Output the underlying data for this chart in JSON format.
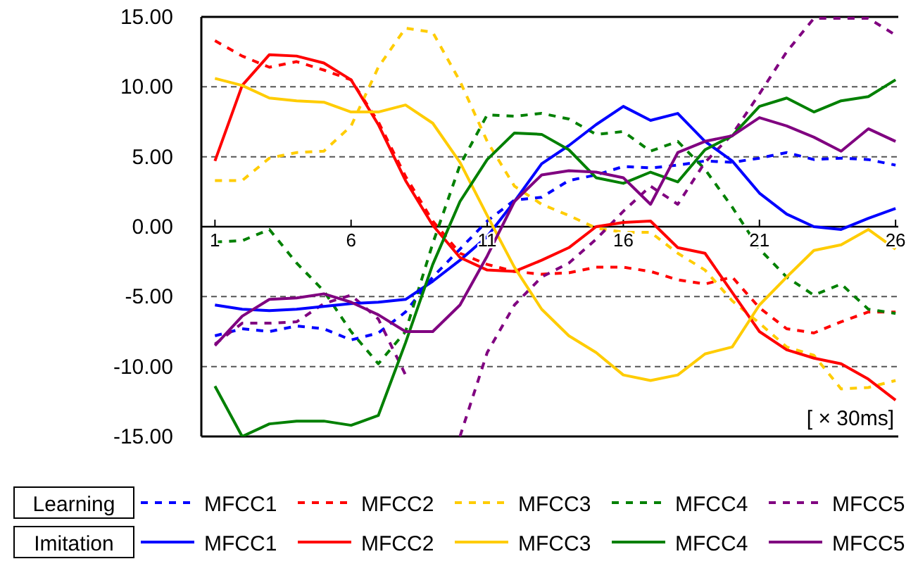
{
  "chart_data": {
    "type": "line",
    "xlabel": "[ × 30ms]",
    "annotations": [
      "Learning",
      "Imitation"
    ],
    "x": [
      1,
      2,
      3,
      4,
      5,
      6,
      7,
      8,
      9,
      10,
      11,
      12,
      13,
      14,
      15,
      16,
      17,
      18,
      19,
      20,
      21,
      22,
      23,
      24,
      25,
      26
    ],
    "xlim": [
      0.5,
      26.1
    ],
    "xticks": [
      1,
      6,
      11,
      16,
      21,
      26
    ],
    "ylim": [
      -15,
      15
    ],
    "yticks": [
      {
        "value": 15,
        "label": "15.00"
      },
      {
        "value": 10,
        "label": "10.00"
      },
      {
        "value": 5,
        "label": "5.00"
      },
      {
        "value": 0,
        "label": "0.00"
      },
      {
        "value": -5,
        "label": "-5.00"
      },
      {
        "value": -10,
        "label": "-10.00"
      },
      {
        "value": -15,
        "label": "-15.00"
      }
    ],
    "grid": "y",
    "legend": "bottom",
    "marker": "none",
    "series": [
      {
        "name": "MFCC1",
        "color": "#0000ff",
        "line_style": "dashed",
        "values": [
          -7.8,
          -7.3,
          -7.5,
          -7.1,
          -7.3,
          -8.1,
          -7.6,
          -6.1,
          -3.6,
          -1.6,
          0.4,
          1.9,
          2.1,
          3.3,
          3.7,
          4.3,
          4.2,
          4.4,
          4.7,
          4.6,
          4.9,
          5.3,
          4.8,
          4.9,
          4.8,
          4.4
        ]
      },
      {
        "name": "MFCC2",
        "color": "#ff0000",
        "line_style": "dashed",
        "values": [
          13.3,
          12.2,
          11.4,
          11.8,
          11.2,
          10.5,
          7.5,
          3.6,
          0.4,
          -1.9,
          -2.7,
          -3.2,
          -3.4,
          -3.3,
          -2.9,
          -2.9,
          -3.2,
          -3.8,
          -4.1,
          -3.6,
          -5.8,
          -7.3,
          -7.6,
          -6.8,
          -6.1,
          -6.1
        ]
      },
      {
        "name": "MFCC3",
        "color": "#ffcc00",
        "line_style": "dashed",
        "values": [
          3.3,
          3.3,
          4.9,
          5.3,
          5.4,
          7.2,
          11.4,
          14.2,
          13.9,
          10.4,
          6.1,
          2.9,
          1.6,
          0.8,
          -0.1,
          -0.4,
          -0.4,
          -1.9,
          -3.1,
          -5.3,
          -6.9,
          -8.6,
          -9.2,
          -11.6,
          -11.5,
          -11.0
        ]
      },
      {
        "name": "MFCC4",
        "color": "#008000",
        "line_style": "dashed",
        "values": [
          -1.1,
          -1.0,
          -0.2,
          -2.6,
          -4.6,
          -7.5,
          -9.8,
          -7.5,
          -1.2,
          4.4,
          8.0,
          7.9,
          8.1,
          7.7,
          6.6,
          6.8,
          5.4,
          6.1,
          4.1,
          1.4,
          -1.6,
          -3.6,
          -4.9,
          -4.1,
          -5.9,
          -6.2
        ]
      },
      {
        "name": "MFCC5",
        "color": "#800080",
        "line_style": "dashed",
        "values": [
          -8.4,
          -6.9,
          -6.9,
          -6.8,
          -5.5,
          -4.9,
          -6.6,
          -10.6,
          null,
          -15.0,
          -9.0,
          -5.6,
          -3.6,
          -2.6,
          -0.9,
          1.1,
          2.9,
          1.6,
          4.6,
          6.6,
          9.5,
          12.5,
          14.9,
          14.9,
          14.9,
          13.7
        ]
      },
      {
        "name": "MFCC1",
        "color": "#0000ff",
        "line_style": "solid",
        "values": [
          -5.6,
          -5.9,
          -6.0,
          -5.9,
          -5.7,
          -5.5,
          -5.4,
          -5.2,
          -3.9,
          -2.4,
          -0.7,
          1.8,
          4.5,
          5.8,
          7.3,
          8.6,
          7.6,
          8.1,
          6.1,
          4.7,
          2.4,
          0.9,
          0.0,
          -0.2,
          0.6,
          1.3
        ]
      },
      {
        "name": "MFCC2",
        "color": "#ff0000",
        "line_style": "solid",
        "values": [
          4.7,
          10.1,
          12.3,
          12.2,
          11.7,
          10.5,
          7.3,
          3.3,
          0.1,
          -2.2,
          -3.1,
          -3.2,
          -2.4,
          -1.5,
          0.0,
          0.3,
          0.4,
          -1.5,
          -1.9,
          -4.7,
          -7.5,
          -8.8,
          -9.4,
          -9.8,
          -10.9,
          -12.4
        ]
      },
      {
        "name": "MFCC3",
        "color": "#ffcc00",
        "line_style": "solid",
        "values": [
          10.6,
          10.1,
          9.2,
          9.0,
          8.9,
          8.2,
          8.2,
          8.7,
          7.4,
          4.6,
          0.8,
          -2.9,
          -5.9,
          -7.8,
          -9.0,
          -10.6,
          -11.0,
          -10.6,
          -9.1,
          -8.6,
          -5.6,
          -3.6,
          -1.7,
          -1.3,
          -0.2,
          -1.6
        ]
      },
      {
        "name": "MFCC4",
        "color": "#008000",
        "line_style": "solid",
        "values": [
          -11.4,
          -15.0,
          -14.1,
          -13.9,
          -13.9,
          -14.2,
          -13.5,
          -8.3,
          -2.7,
          1.8,
          4.8,
          6.7,
          6.6,
          5.5,
          3.5,
          3.1,
          3.9,
          3.2,
          5.5,
          6.5,
          8.6,
          9.2,
          8.2,
          9.0,
          9.3,
          10.5
        ]
      },
      {
        "name": "MFCC5",
        "color": "#800080",
        "line_style": "solid",
        "values": [
          -8.5,
          -6.4,
          -5.2,
          -5.1,
          -4.8,
          -5.4,
          -6.3,
          -7.5,
          -7.5,
          -5.6,
          -2.1,
          1.8,
          3.7,
          4.0,
          3.9,
          3.5,
          1.6,
          5.3,
          6.1,
          6.5,
          7.8,
          7.2,
          6.4,
          5.4,
          7.0,
          6.1
        ]
      }
    ]
  }
}
